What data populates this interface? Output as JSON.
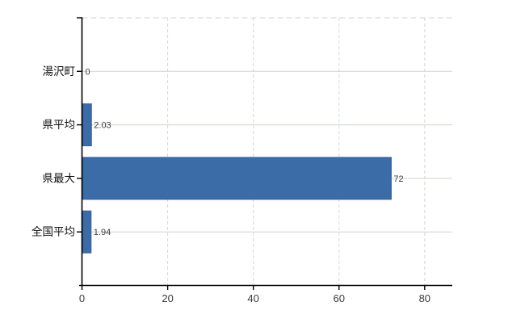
{
  "chart_data": {
    "type": "bar",
    "orientation": "horizontal",
    "title": "",
    "xlabel": "",
    "ylabel": "",
    "categories": [
      "湯沢町",
      "県平均",
      "県最大",
      "全国平均"
    ],
    "values": [
      0,
      2.03,
      72,
      1.94
    ],
    "value_labels": [
      "0",
      "2.03",
      "72",
      "1.94"
    ],
    "x_ticks": [
      0,
      20,
      40,
      60,
      80
    ],
    "x_tick_labels": [
      "0",
      "20",
      "40",
      "60",
      "80"
    ],
    "xlim": [
      0,
      86.5
    ],
    "legend": "none",
    "grid": {
      "horizontal": "solid",
      "vertical": "dashed",
      "top_border": "dashed"
    },
    "colors": {
      "bar_fill": "#3b6ca7",
      "bar_edge": "#34619b",
      "axis": "#000000",
      "grid_horizontal": "#ccd5cc",
      "grid_vertical": "#d6d6d6",
      "top_border": "#d2d2d2",
      "category_label": "#111111",
      "tick_label": "#3a3a3a",
      "value_label": "#3c3c3c",
      "background": "#ffffff"
    }
  }
}
